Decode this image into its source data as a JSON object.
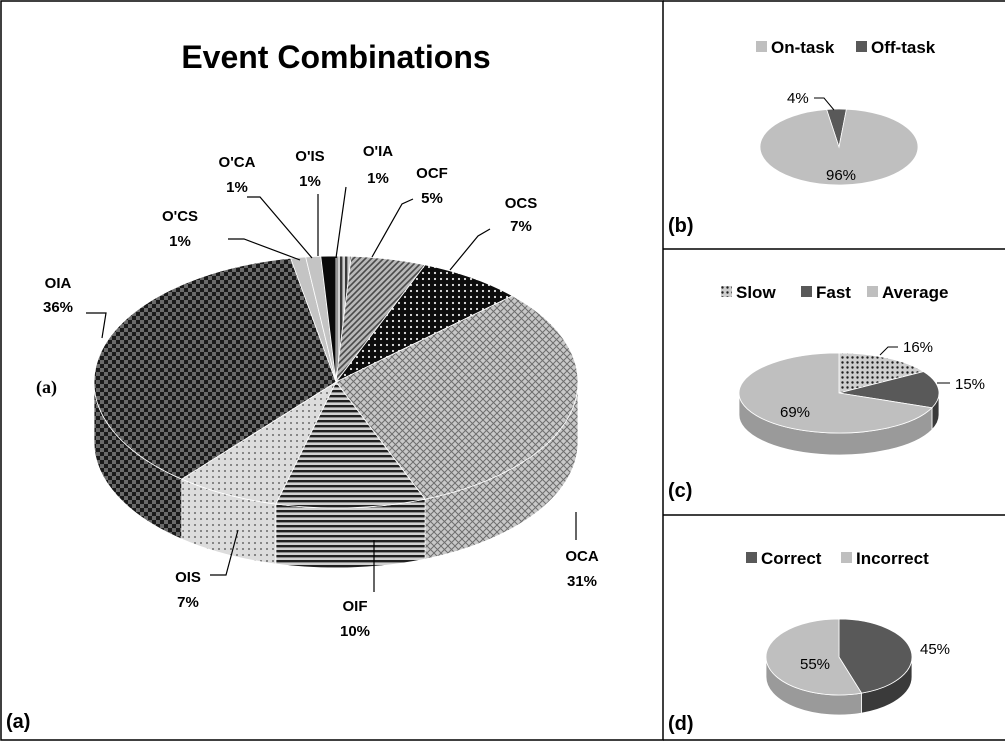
{
  "chart_data": [
    {
      "panel": "(a)",
      "side_label": "(a)",
      "type": "pie",
      "title": "Event Combinations",
      "categories": [
        "O'IA",
        "OCF",
        "OCS",
        "OCA",
        "OIF",
        "OIS",
        "OIA",
        "O'CS",
        "O'CA",
        "O'IS"
      ],
      "values": [
        1,
        5,
        7,
        31,
        10,
        7,
        36,
        1,
        1,
        1
      ],
      "labels": [
        "1%",
        "5%",
        "7%",
        "31%",
        "10%",
        "7%",
        "36%",
        "1%",
        "1%",
        "1%"
      ],
      "fills": [
        "vstripe",
        "diag",
        "dots-dark",
        "crosshatch-light",
        "hstripe",
        "dots-light",
        "checker-dark",
        "light-grey",
        "light-grey",
        "black"
      ]
    },
    {
      "panel": "(b)",
      "type": "pie",
      "legend": [
        "On-task",
        "Off-task"
      ],
      "categories": [
        "Off-task",
        "On-task"
      ],
      "values": [
        4,
        96
      ],
      "labels": [
        "4%",
        "96%"
      ],
      "colors": [
        "#595959",
        "#bfbfbf"
      ]
    },
    {
      "panel": "(c)",
      "type": "pie",
      "legend": [
        "Slow",
        "Fast",
        "Average"
      ],
      "categories": [
        "Slow",
        "Fast",
        "Average"
      ],
      "values": [
        16,
        15,
        69
      ],
      "labels": [
        "16%",
        "15%",
        "69%"
      ],
      "colors": [
        "#bfbfbf",
        "#595959",
        "#bfbfbf"
      ]
    },
    {
      "panel": "(d)",
      "type": "pie",
      "legend": [
        "Correct",
        "Incorrect"
      ],
      "categories": [
        "Correct",
        "Incorrect"
      ],
      "values": [
        45,
        55
      ],
      "labels": [
        "45%",
        "55%"
      ],
      "colors": [
        "#595959",
        "#bfbfbf"
      ]
    }
  ]
}
